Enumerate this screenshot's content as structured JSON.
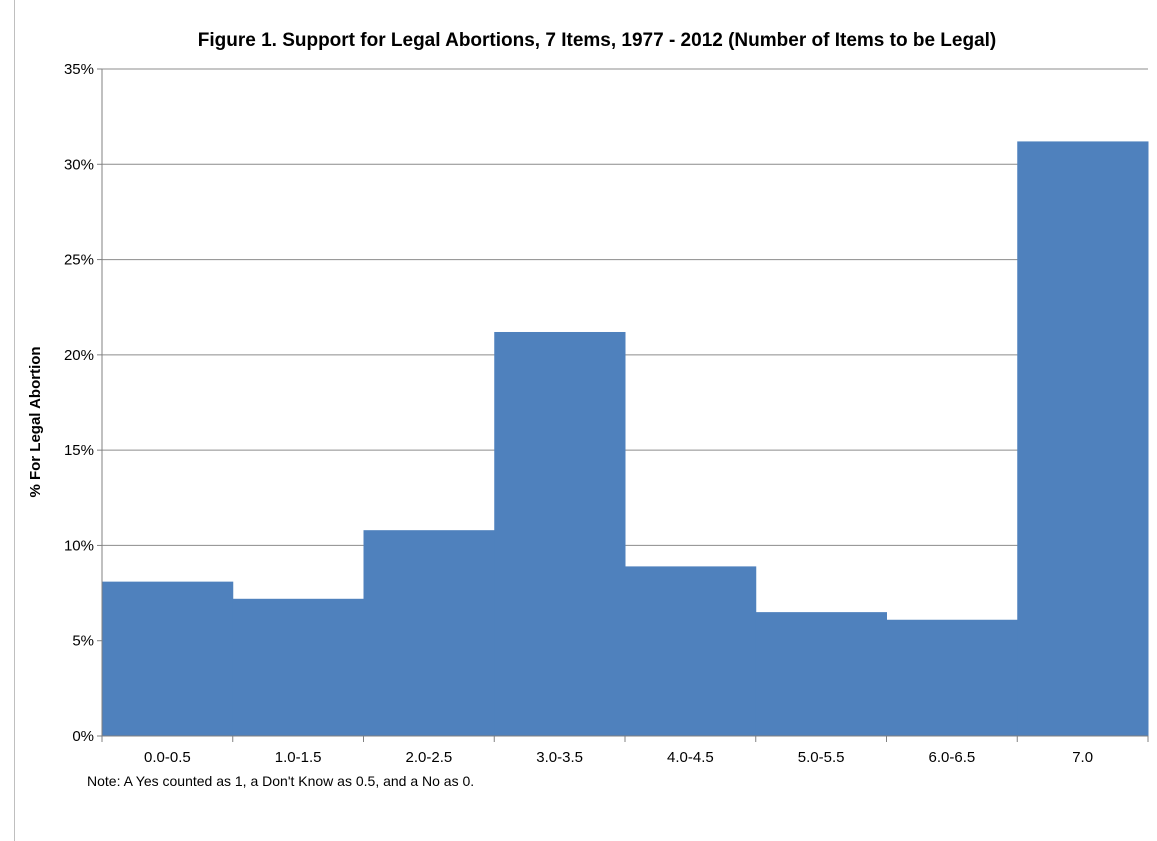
{
  "chart_data": {
    "type": "bar",
    "title": "Figure 1. Support for Legal Abortions, 7 Items, 1977 - 2012 (Number of Items to be Legal)",
    "xlabel": "",
    "ylabel": "% For Legal Abortion",
    "categories": [
      "0.0-0.5",
      "1.0-1.5",
      "2.0-2.5",
      "3.0-3.5",
      "4.0-4.5",
      "5.0-5.5",
      "6.0-6.5",
      "7.0"
    ],
    "values": [
      8.1,
      7.2,
      10.8,
      21.2,
      8.9,
      6.5,
      6.1,
      31.2
    ],
    "ylim": [
      0,
      35
    ],
    "y_ticks": [
      0,
      5,
      10,
      15,
      20,
      25,
      30,
      35
    ],
    "y_tick_labels": [
      "0%",
      "5%",
      "10%",
      "15%",
      "20%",
      "25%",
      "30%",
      "35%"
    ],
    "grid": true,
    "bar_color": "#4f81bd",
    "grid_color": "#8c8c8c"
  },
  "note": "Note: A Yes counted as 1, a Don't Know as 0.5, and a No as 0."
}
